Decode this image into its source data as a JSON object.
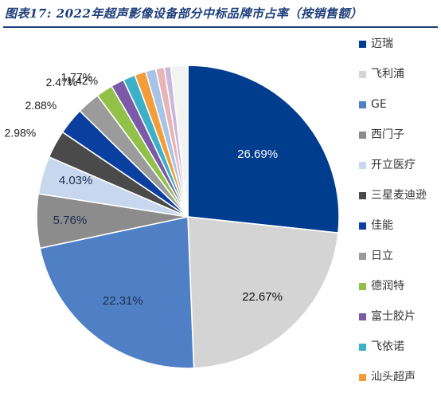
{
  "title": "图表17: 2022年超声影像设备部分中标品牌市占率（按销售额）",
  "chart_data": {
    "type": "pie",
    "slices": [
      {
        "label": "迈瑞",
        "value": 26.69,
        "value_label": "26.69%",
        "color": "#003d8f",
        "text_color": "#ffffff"
      },
      {
        "label": "飞利浦",
        "value": 22.67,
        "value_label": "22.67%",
        "color": "#d4d4d4",
        "text_color": "#111111"
      },
      {
        "label": "GE",
        "value": 22.31,
        "value_label": "22.31%",
        "color": "#4f7fc4",
        "text_color": "#1f2f4f"
      },
      {
        "label": "西门子",
        "value": 5.76,
        "value_label": "5.76%",
        "color": "#8c8c8c",
        "text_color": "#1f2f4f"
      },
      {
        "label": "开立医疗",
        "value": 4.03,
        "value_label": "4.03%",
        "color": "#c8d7ee",
        "text_color": "#1f2f4f"
      },
      {
        "label": "三星麦迪逊",
        "value": 2.98,
        "value_label": "2.98%",
        "color": "#4a4a4a",
        "text_color": "#222222"
      },
      {
        "label": "佳能",
        "value": 2.88,
        "value_label": "2.88%",
        "color": "#0a3fa0",
        "text_color": "#222222"
      },
      {
        "label": "日立",
        "value": 2.47,
        "value_label": "2.47%",
        "color": "#9b9b9b",
        "text_color": "#222222"
      },
      {
        "label": "德润特",
        "value": 1.77,
        "value_label": "1.77%",
        "color": "#92c14a",
        "text_color": "#222222"
      },
      {
        "label": "富士胶片",
        "value": 1.42,
        "value_label": "1.42%",
        "color": "#7b5aa8",
        "text_color": "#2f4f8f"
      },
      {
        "label": "飞依诺",
        "value": 1.3,
        "value_label": "",
        "color": "#3cb0c8"
      },
      {
        "label": "汕头超声",
        "value": 1.2,
        "value_label": "",
        "color": "#f39c3a"
      },
      {
        "label": "",
        "value": 1.1,
        "value_label": "",
        "color": "#a7c4e6"
      },
      {
        "label": "",
        "value": 0.9,
        "value_label": "",
        "color": "#e8b4b4"
      },
      {
        "label": "",
        "value": 0.7,
        "value_label": "",
        "color": "#c9b8dc"
      },
      {
        "label": "",
        "value": 1.81,
        "value_label": "",
        "color": "#f3f3f3"
      }
    ],
    "legend_position": "right"
  }
}
